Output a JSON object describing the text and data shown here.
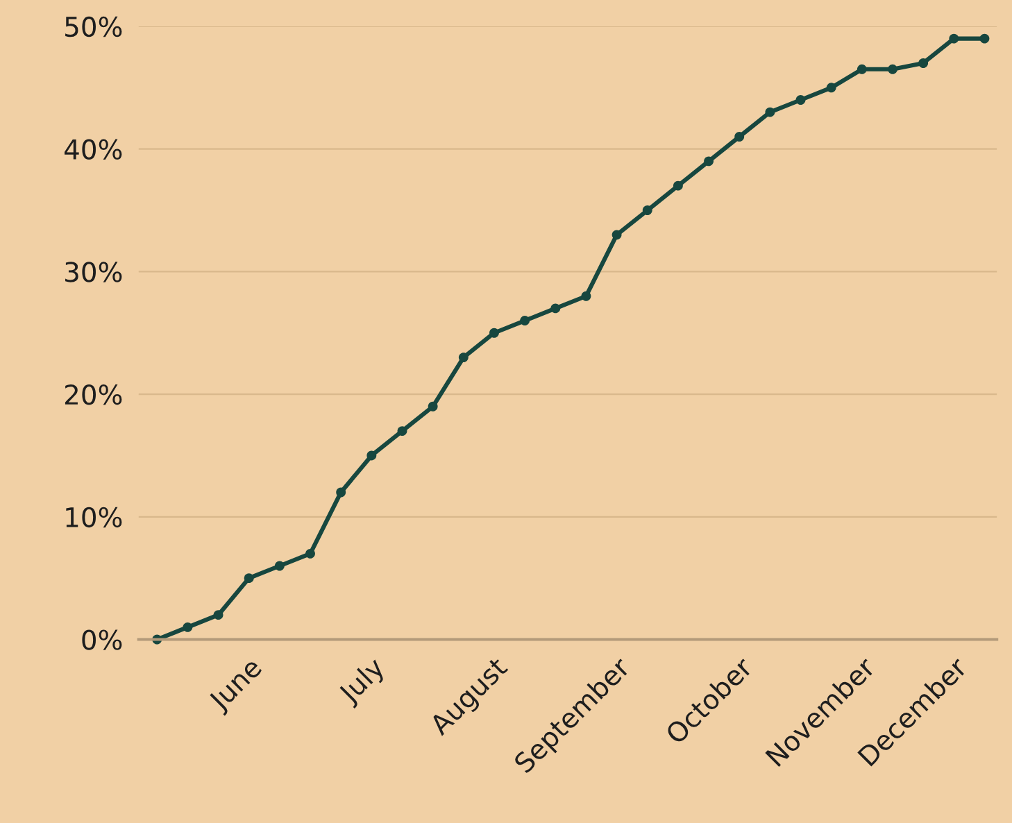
{
  "chart_data": {
    "type": "line",
    "categories": [
      null,
      null,
      null,
      "June",
      null,
      null,
      null,
      "July",
      null,
      null,
      null,
      "August",
      null,
      null,
      null,
      "September",
      null,
      null,
      null,
      "October",
      null,
      null,
      null,
      "November",
      null,
      null,
      "December",
      null
    ],
    "series": [
      {
        "color": "#17473f",
        "values": [
          0,
          1,
          2,
          5,
          6,
          7,
          12,
          15,
          17,
          19,
          23,
          25,
          26,
          27,
          28,
          33,
          35,
          37,
          39,
          41,
          43,
          44,
          45,
          46.5,
          46.5,
          47,
          49,
          49
        ]
      }
    ],
    "ylim": [
      0,
      50
    ],
    "yticks": [
      {
        "value": 0,
        "label": "0%"
      },
      {
        "value": 10,
        "label": "10%"
      },
      {
        "value": 20,
        "label": "20%"
      },
      {
        "value": 30,
        "label": "30%"
      },
      {
        "value": 40,
        "label": "40%"
      },
      {
        "value": 50,
        "label": "50%"
      }
    ],
    "grid": "y",
    "marker": "circle",
    "line_style": "solid"
  }
}
